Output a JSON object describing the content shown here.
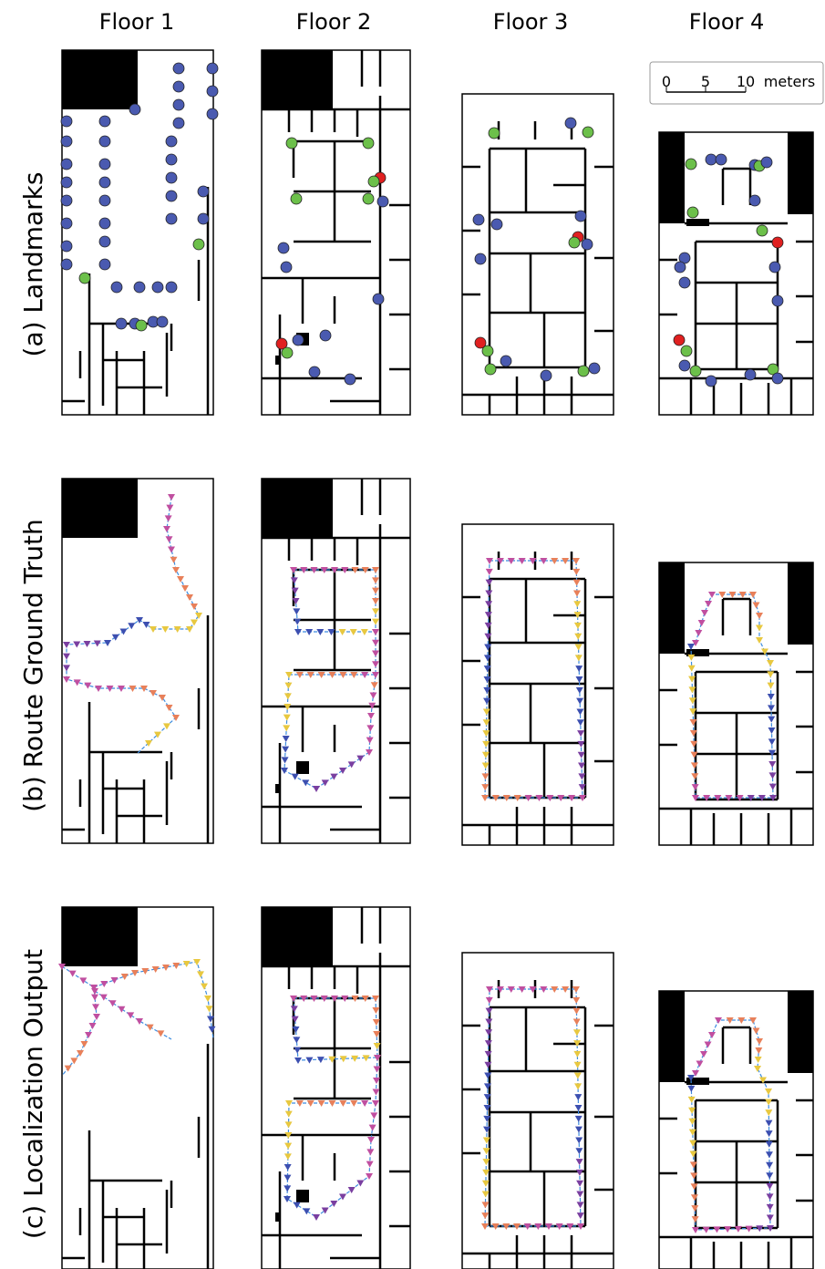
{
  "column_headers": [
    "Floor 1",
    "Floor 2",
    "Floor 3",
    "Floor 4"
  ],
  "row_labels": [
    "(a) Landmarks",
    "(b) Route Ground Truth",
    "(c) Localization Output"
  ],
  "scale_bar": {
    "ticks": [
      "0",
      "5",
      "10"
    ],
    "unit": "meters"
  }
}
